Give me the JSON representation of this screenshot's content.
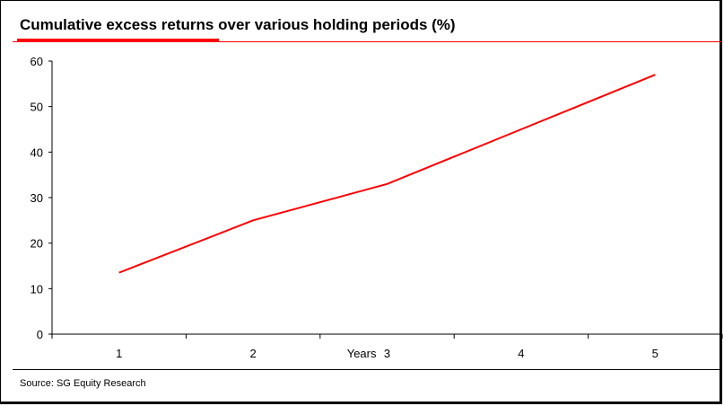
{
  "title": "Cumulative excess returns over various holding periods (%)",
  "source": "Source: SG Equity Research",
  "accent_color": "#ff0000",
  "chart_data": {
    "type": "line",
    "title": "Cumulative excess returns over various holding periods (%)",
    "xlabel": "Years",
    "ylabel": "",
    "categories": [
      "1",
      "2",
      "3",
      "4",
      "5"
    ],
    "series": [
      {
        "values": [
          13.5,
          25,
          33,
          45,
          57
        ],
        "color": "#ff0000"
      }
    ],
    "ylim": [
      0,
      60
    ],
    "yticks": [
      "0",
      "10",
      "20",
      "30",
      "40",
      "50",
      "60"
    ],
    "grid": false,
    "legend": "none"
  }
}
